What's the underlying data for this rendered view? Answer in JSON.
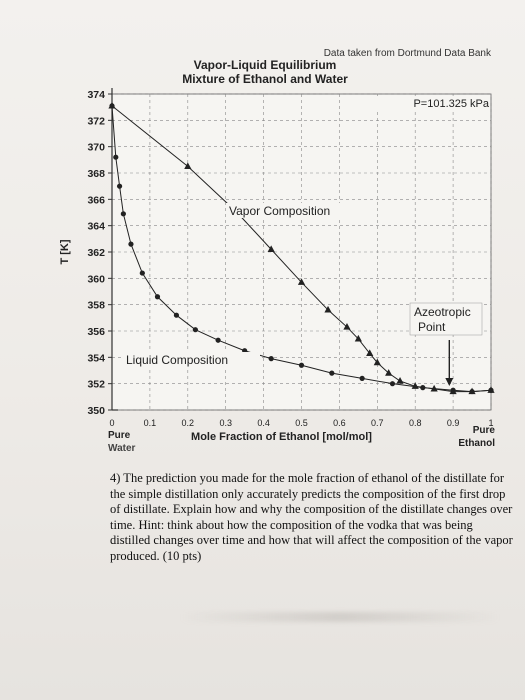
{
  "source_note": "Data taken from Dortmund Data Bank",
  "question": "4) The prediction you made for the mole fraction of ethanol of the distillate for the simple distillation only accurately predicts the composition of the first drop of distillate. Explain how and why the composition of the distillate changes over time. Hint: think about how the composition of the vodka that was being distilled changes over time and how that will affect the composition of the vapor produced. (10 pts)",
  "chart_data": {
    "type": "scatter",
    "title": "Vapor-Liquid Equilibrium",
    "subtitle": "Mixture of Ethanol and Water",
    "xlabel": "Mole Fraction of Ethanol [mol/mol]",
    "ylabel": "T [K]",
    "xlim": [
      0,
      1
    ],
    "ylim": [
      350,
      374
    ],
    "x_ticks": [
      "0",
      "0.1",
      "0.2",
      "0.3",
      "0.4",
      "0.5",
      "0.6",
      "0.7",
      "0.8",
      "0.9",
      "1"
    ],
    "y_ticks": [
      "350",
      "352",
      "354",
      "356",
      "358",
      "360",
      "362",
      "364",
      "366",
      "368",
      "370",
      "372",
      "374"
    ],
    "x_end_labels": {
      "left": "Pure Water",
      "right": "Pure Ethanol"
    },
    "grid": true,
    "annotations": {
      "pressure": "P=101.325 kPa",
      "vapor": "Vapor Composition",
      "liquid": "Liquid Composition",
      "azeotrope": "Azeotropic Point"
    },
    "series": [
      {
        "name": "Vapor Composition",
        "marker": "triangle",
        "color": "#222222",
        "x": [
          0.0,
          0.2,
          0.33,
          0.42,
          0.5,
          0.57,
          0.62,
          0.65,
          0.68,
          0.7,
          0.73,
          0.76,
          0.8,
          0.85,
          0.9,
          0.95,
          1.0
        ],
        "y": [
          373.1,
          368.5,
          365.0,
          362.2,
          359.7,
          357.6,
          356.3,
          355.4,
          354.3,
          353.6,
          352.8,
          352.2,
          351.8,
          351.6,
          351.4,
          351.4,
          351.5
        ]
      },
      {
        "name": "Liquid Composition",
        "marker": "circle",
        "color": "#222222",
        "x": [
          0.0,
          0.01,
          0.02,
          0.03,
          0.05,
          0.08,
          0.12,
          0.17,
          0.22,
          0.28,
          0.35,
          0.42,
          0.5,
          0.58,
          0.66,
          0.74,
          0.82,
          0.9,
          0.95,
          1.0
        ],
        "y": [
          373.1,
          369.2,
          367.0,
          364.9,
          362.6,
          360.4,
          358.6,
          357.2,
          356.1,
          355.3,
          354.5,
          353.9,
          353.4,
          352.8,
          352.4,
          352.0,
          351.7,
          351.5,
          351.4,
          351.5
        ]
      }
    ]
  }
}
